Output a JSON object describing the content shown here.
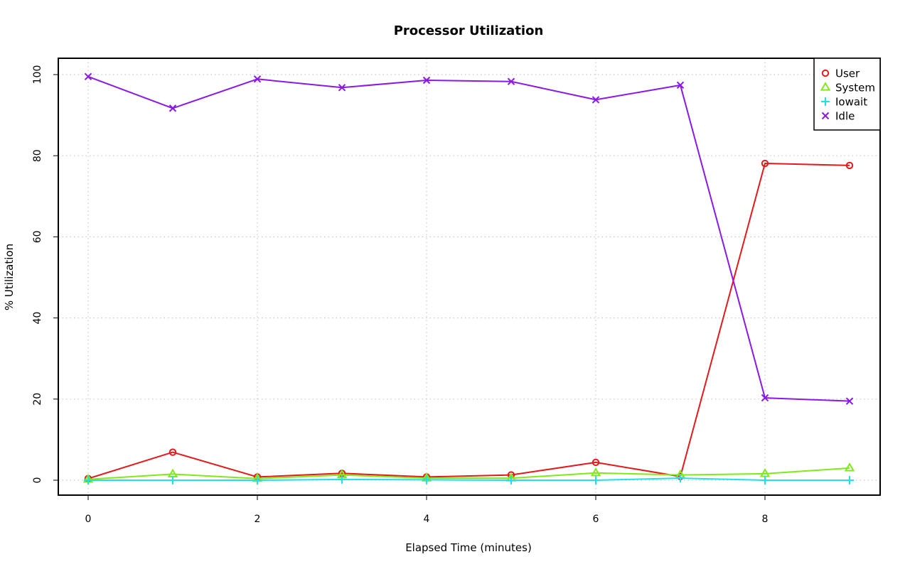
{
  "chart_data": {
    "type": "line",
    "title": "Processor Utilization",
    "xlabel": "Elapsed Time (minutes)",
    "ylabel": "% Utilization",
    "xlim": [
      0,
      9
    ],
    "ylim": [
      0,
      100
    ],
    "x_ticks": [
      0,
      2,
      4,
      6,
      8
    ],
    "y_ticks": [
      0,
      20,
      40,
      60,
      80,
      100
    ],
    "grid": true,
    "legend_position": "top-right",
    "x": [
      0,
      1,
      2,
      3,
      4,
      5,
      6,
      7,
      8,
      9
    ],
    "series": [
      {
        "name": "User",
        "color": "#e31a1c",
        "marker": "circle",
        "values": [
          0.4,
          6.9,
          0.8,
          1.7,
          0.8,
          1.3,
          4.4,
          0.9,
          78.1,
          77.6
        ]
      },
      {
        "name": "System",
        "color": "#7fea1a",
        "marker": "triangle",
        "values": [
          0.2,
          1.5,
          0.4,
          1.3,
          0.5,
          0.5,
          1.8,
          1.3,
          1.6,
          3.0
        ]
      },
      {
        "name": "Iowait",
        "color": "#22e0e6",
        "marker": "plus",
        "values": [
          0.0,
          0.0,
          0.0,
          0.2,
          0.1,
          0.0,
          0.0,
          0.5,
          0.0,
          0.0
        ]
      },
      {
        "name": "Idle",
        "color": "#8a19e6",
        "marker": "cross",
        "values": [
          99.5,
          91.7,
          98.9,
          96.8,
          98.6,
          98.3,
          93.8,
          97.4,
          20.3,
          19.5
        ]
      }
    ]
  }
}
